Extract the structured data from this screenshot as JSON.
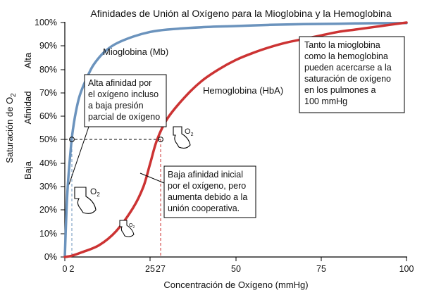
{
  "chart_data": {
    "type": "line",
    "title": "Afinidades de Unión al Oxígeno para la Mioglobina y la Hemoglobina",
    "xlabel": "Concentración de Oxígeno (mmHg)",
    "ylabel": "Saturación de O",
    "ylabel_sub": "2",
    "xlim": [
      0,
      100
    ],
    "ylim": [
      0,
      100
    ],
    "x_ticks": [
      "0",
      "2",
      "25",
      "27",
      "50",
      "75",
      "100"
    ],
    "y_ticks": [
      "0%",
      "10%",
      "20%",
      "30%",
      "40%",
      "50%",
      "60%",
      "70%",
      "80%",
      "90%",
      "100%"
    ],
    "affinity_labels": [
      "Alta",
      "Afinidad",
      "Baja"
    ],
    "series": [
      {
        "name": "Mioglobina (Mb)",
        "color": "#6b93bd",
        "x": [
          0,
          0.5,
          1,
          2,
          3,
          4,
          5,
          6,
          8,
          10,
          12,
          15,
          20,
          25,
          30,
          40,
          50,
          60,
          70,
          80,
          90,
          100
        ],
        "y": [
          0,
          20,
          33,
          50,
          60,
          67,
          71.5,
          75,
          81,
          85,
          88,
          91,
          94,
          96,
          97,
          98,
          98.5,
          99,
          99.3,
          99.5,
          99.7,
          99.8
        ]
      },
      {
        "name": "Hemoglobina (HbA)",
        "color": "#cc3333",
        "x": [
          0,
          2,
          5,
          10,
          15,
          20,
          23,
          25,
          27,
          30,
          35,
          40,
          45,
          50,
          55,
          60,
          65,
          70,
          75,
          80,
          85,
          90,
          95,
          100
        ],
        "y": [
          0,
          0.5,
          2,
          5,
          11,
          21,
          30,
          40,
          50,
          59,
          68,
          75,
          80,
          84,
          87,
          89.5,
          91.5,
          93,
          94.5,
          96,
          97,
          98,
          99,
          100
        ]
      }
    ],
    "reference_points": [
      {
        "x": 2,
        "y": 50
      },
      {
        "x": 27,
        "y": 50
      }
    ],
    "annotations": {
      "myo_note": [
        "Alta afinidad por",
        "el oxígeno incluso",
        "a baja presión",
        "parcial de oxígeno"
      ],
      "hb_note": [
        "Baja afinidad inicial",
        "por el oxígeno, pero",
        "aumenta debido a la",
        "unión cooperativa."
      ],
      "lung_note": [
        "Tanto la mioglobina",
        "como la hemoglobina",
        "pueden acercarse a la",
        "saturación de oxígeno",
        "en los pulmones a",
        "100 mmHg"
      ],
      "o2_label": "O",
      "o2_sub": "2"
    },
    "grid": false,
    "legend": "none"
  }
}
